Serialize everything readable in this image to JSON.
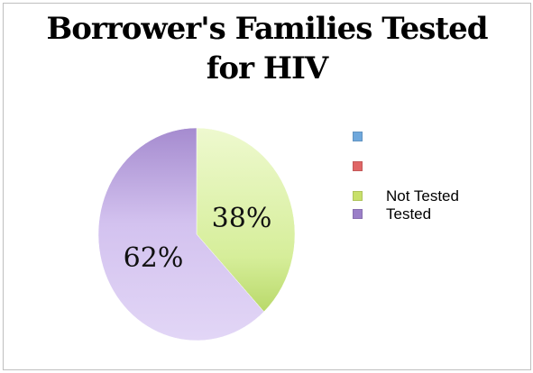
{
  "chart_data": {
    "type": "pie",
    "title": "Borrower's Families Tested for HIV",
    "title_lines": [
      "Borrower's Families Tested",
      "for HIV"
    ],
    "slices": [
      {
        "label": "Not Tested",
        "value": 38,
        "display": "38%",
        "color": "#d9f0a3"
      },
      {
        "label": "Tested",
        "value": 62,
        "display": "62%",
        "color": "#d6c7ef"
      }
    ],
    "legend": {
      "placement": "right",
      "entries": [
        {
          "label": "",
          "color": "#6fa8dc"
        },
        {
          "label": "",
          "color": "#e06666"
        },
        {
          "label": "Not Tested",
          "color": "#c8e06a"
        },
        {
          "label": "Tested",
          "color": "#9b7fc8"
        }
      ]
    }
  }
}
